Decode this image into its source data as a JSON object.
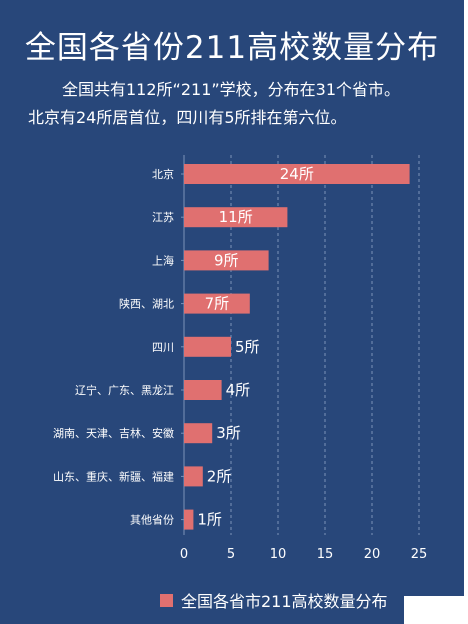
{
  "header": {
    "title": "全国各省份211高校数量分布",
    "line1": "全国共有112所“211”学校，分布在31个省市。",
    "line2": "北京有24所居首位，四川有5所排在第六位。"
  },
  "colors": {
    "background": "#28477a",
    "bar": "#e07070",
    "text": "#ffffff",
    "grid": "#7d93b8"
  },
  "chart_data": {
    "type": "bar",
    "orientation": "horizontal",
    "categories": [
      "北京",
      "江苏",
      "上海",
      "陕西、湖北",
      "四川",
      "辽宁、广东、黑龙江",
      "湖南、天津、吉林、安徽",
      "山东、重庆、新疆、福建",
      "其他省份"
    ],
    "values": [
      24,
      11,
      9,
      7,
      5,
      4,
      3,
      2,
      1
    ],
    "data_labels": [
      "24所",
      "11所",
      "9所",
      "7所",
      "5所",
      "4所",
      "3所",
      "2所",
      "1所"
    ],
    "x_ticks": [
      0,
      5,
      10,
      15,
      20,
      25
    ],
    "xlim": [
      0,
      25
    ],
    "grid": "vertical",
    "series": [
      {
        "name": "全国各省市211高校数量分布",
        "values": [
          24,
          11,
          9,
          7,
          5,
          4,
          3,
          2,
          1
        ]
      }
    ],
    "legend_position": "bottom"
  }
}
